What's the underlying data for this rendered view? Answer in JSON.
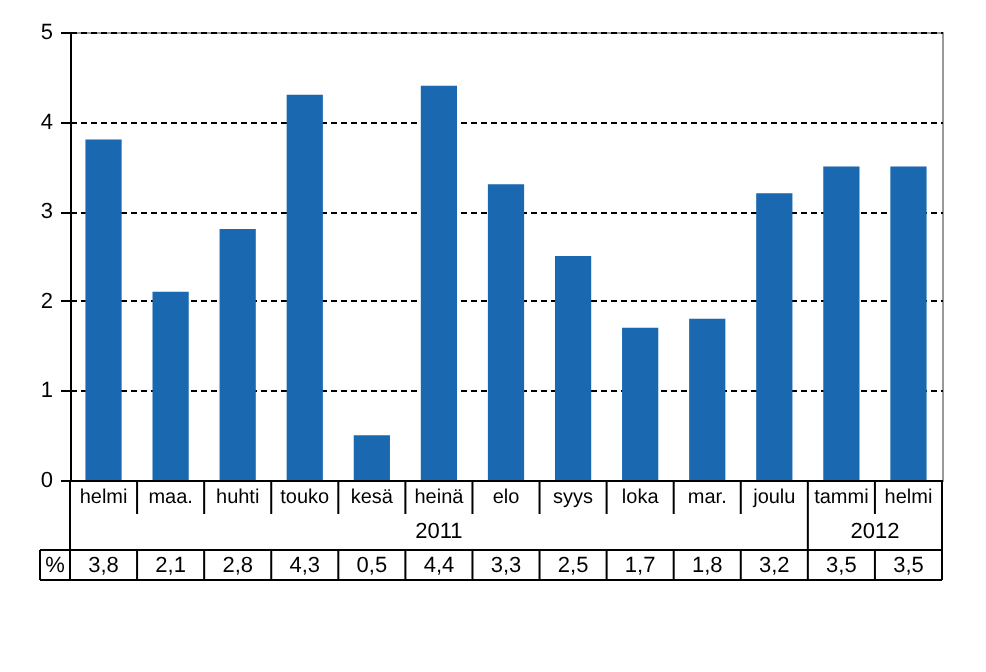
{
  "chart_data": {
    "type": "bar",
    "categories": [
      "helmi",
      "maa.",
      "huhti",
      "touko",
      "kesä",
      "heinä",
      "elo",
      "syys",
      "loka",
      "mar.",
      "joulu",
      "tammi",
      "helmi"
    ],
    "values": [
      3.8,
      2.1,
      2.8,
      4.3,
      0.5,
      4.4,
      3.3,
      2.5,
      1.7,
      1.8,
      3.2,
      3.5,
      3.5
    ],
    "value_labels": [
      "3,8",
      "2,1",
      "2,8",
      "4,3",
      "0,5",
      "4,4",
      "3,3",
      "2,5",
      "1,7",
      "1,8",
      "3,2",
      "3,5",
      "3,5"
    ],
    "color": "#1a69b0",
    "ylim": [
      0,
      5
    ],
    "yticks": [
      0,
      1,
      2,
      3,
      4,
      5
    ],
    "grid": "y",
    "annotations": [
      "2011",
      "2012",
      "%"
    ]
  }
}
